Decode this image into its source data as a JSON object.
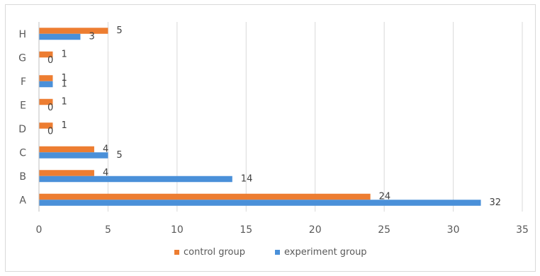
{
  "chart_data": {
    "type": "bar",
    "orientation": "horizontal",
    "categories": [
      "A",
      "B",
      "C",
      "D",
      "E",
      "F",
      "G",
      "H"
    ],
    "series": [
      {
        "name": "control group",
        "color": "#ed7d31",
        "values": [
          24,
          4,
          4,
          1,
          1,
          1,
          1,
          5
        ]
      },
      {
        "name": "experiment group",
        "color": "#4a90d9",
        "values": [
          32,
          14,
          5,
          0,
          0,
          1,
          0,
          3
        ]
      }
    ],
    "xlim": [
      0,
      35
    ],
    "xticks": [
      0,
      5,
      10,
      15,
      20,
      25,
      30,
      35
    ],
    "title": "",
    "xlabel": "",
    "ylabel": "",
    "grid": "vertical",
    "legend_position": "bottom",
    "data_labels": true
  }
}
